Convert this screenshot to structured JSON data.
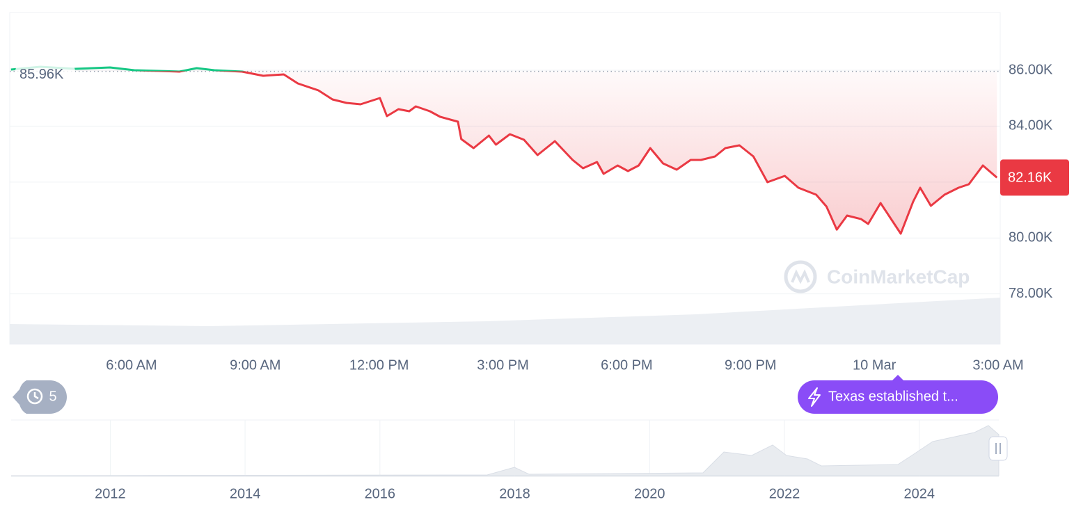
{
  "chart_data": {
    "type": "line",
    "x": [
      3.08,
      3.79,
      4.63,
      5.48,
      6.07,
      6.66,
      7.16,
      7.58,
      8.01,
      8.68,
      9.19,
      9.69,
      10.03,
      10.53,
      10.87,
      11.21,
      11.55,
      12.02,
      12.19,
      12.47,
      12.73,
      12.89,
      13.23,
      13.48,
      13.91,
      13.99,
      14.29,
      14.66,
      14.83,
      15.17,
      15.51,
      15.84,
      16.26,
      16.69,
      16.94,
      17.28,
      17.44,
      17.78,
      18.03,
      18.29,
      18.57,
      18.88,
      19.21,
      19.55,
      19.8,
      20.14,
      20.39,
      20.73,
      21.07,
      21.41,
      21.83,
      22.16,
      22.59,
      22.84,
      23.09,
      23.34,
      23.68,
      23.85,
      24.15,
      24.44,
      24.64,
      24.94,
      25.11,
      25.37,
      25.7,
      26.04,
      26.29,
      26.63,
      26.97
    ],
    "series": [
      {
        "color": "#ea3943",
        "up_color": "#16c784",
        "values": [
          86025,
          86124,
          86050,
          86100,
          86000,
          85975,
          85950,
          86075,
          86000,
          85950,
          85801,
          85851,
          85527,
          85279,
          84955,
          84831,
          84781,
          85005,
          84358,
          84607,
          84532,
          84707,
          84532,
          84333,
          84159,
          83537,
          83214,
          83662,
          83338,
          83712,
          83513,
          82965,
          83463,
          82791,
          82493,
          82716,
          82294,
          82592,
          82393,
          82592,
          83214,
          82667,
          82443,
          82791,
          82791,
          82916,
          83214,
          83314,
          82916,
          81995,
          82219,
          81796,
          81547,
          81124,
          80300,
          80801,
          80676,
          80502,
          81249,
          80602,
          80154,
          81299,
          81796,
          81149,
          81547,
          81796,
          81920,
          82592,
          82160
        ]
      }
    ],
    "xlim": [
      3.05,
      27.05
    ],
    "xticks": [
      {
        "value": 6,
        "label": "6:00 AM"
      },
      {
        "value": 9,
        "label": "9:00 AM"
      },
      {
        "value": 12,
        "label": "12:00 PM"
      },
      {
        "value": 15,
        "label": "3:00 PM"
      },
      {
        "value": 18,
        "label": "6:00 PM"
      },
      {
        "value": 21,
        "label": "9:00 PM"
      },
      {
        "value": 24,
        "label": "10 Mar"
      },
      {
        "value": 27,
        "label": "3:00 AM"
      }
    ],
    "ylim": [
      76200,
      88065
    ],
    "yticks": [
      {
        "value": 78000,
        "label": "78.00K"
      },
      {
        "value": 80000,
        "label": "80.00K"
      },
      {
        "value": 82000,
        "label": "82.00K"
      },
      {
        "value": 84000,
        "label": "84.00K"
      },
      {
        "value": 86000,
        "label": "86.00K"
      }
    ],
    "grid": true,
    "reference": {
      "value": 85960,
      "label": "85.96K"
    },
    "last_price": {
      "value": 82160,
      "label": "82.16K"
    },
    "watermark": "CoinMarketCap",
    "history_count": 5,
    "news": "Texas established t...",
    "navigator": {
      "xlim": [
        2010.53,
        2025.18
      ],
      "xticks": [
        2012,
        2014,
        2016,
        2018,
        2020,
        2022,
        2024
      ]
    }
  }
}
